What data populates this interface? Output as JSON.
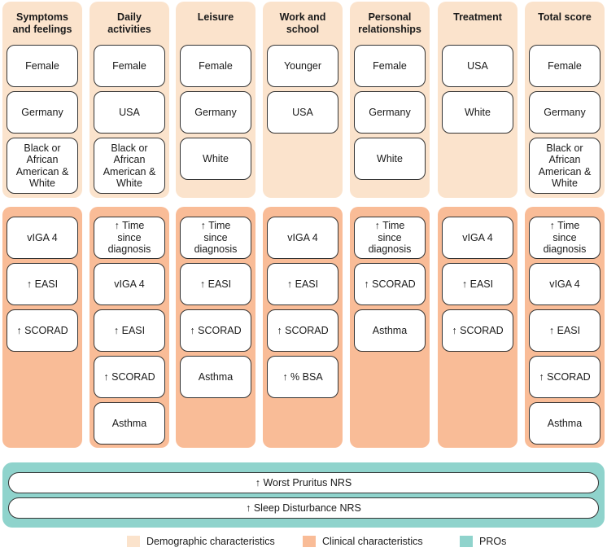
{
  "colors": {
    "demographic": "#fbe3cc",
    "clinical": "#f9bc97",
    "pros": "#8fd3cc"
  },
  "columns": [
    {
      "title": "Symptoms\nand feelings",
      "demographic": [
        "Female",
        "Germany",
        "Black or\nAfrican\nAmerican &\nWhite"
      ],
      "clinical": [
        "vIGA 4",
        "↑ EASI",
        "↑ SCORAD"
      ]
    },
    {
      "title": "Daily\nactivities",
      "demographic": [
        "Female",
        "USA",
        "Black or\nAfrican\nAmerican &\nWhite"
      ],
      "clinical": [
        "↑ Time\nsince\ndiagnosis",
        "vIGA 4",
        "↑ EASI",
        "↑ SCORAD",
        "Asthma"
      ]
    },
    {
      "title": "Leisure",
      "demographic": [
        "Female",
        "Germany",
        "White"
      ],
      "clinical": [
        "↑ Time\nsince\ndiagnosis",
        "↑ EASI",
        "↑ SCORAD",
        "Asthma"
      ]
    },
    {
      "title": "Work and\nschool",
      "demographic": [
        "Younger",
        "USA"
      ],
      "clinical": [
        "vIGA 4",
        "↑ EASI",
        "↑ SCORAD",
        "↑ % BSA"
      ]
    },
    {
      "title": "Personal\nrelationships",
      "demographic": [
        "Female",
        "Germany",
        "White"
      ],
      "clinical": [
        "↑ Time\nsince\ndiagnosis",
        "↑ SCORAD",
        "Asthma"
      ]
    },
    {
      "title": "Treatment",
      "demographic": [
        "USA",
        "White"
      ],
      "clinical": [
        "vIGA 4",
        "↑ EASI",
        "↑ SCORAD"
      ]
    },
    {
      "title": "Total score",
      "demographic": [
        "Female",
        "Germany",
        "Black or\nAfrican\nAmerican &\nWhite"
      ],
      "clinical": [
        "↑ Time\nsince\ndiagnosis",
        "vIGA 4",
        "↑ EASI",
        "↑ SCORAD",
        "Asthma"
      ]
    }
  ],
  "pros": [
    "↑ Worst Pruritus NRS",
    "↑ Sleep Disturbance NRS"
  ],
  "legend": [
    {
      "label": "Demographic characteristics",
      "color": "#fbe3cc"
    },
    {
      "label": "Clinical characteristics",
      "color": "#f9bc97"
    },
    {
      "label": "PROs",
      "color": "#8fd3cc"
    }
  ]
}
